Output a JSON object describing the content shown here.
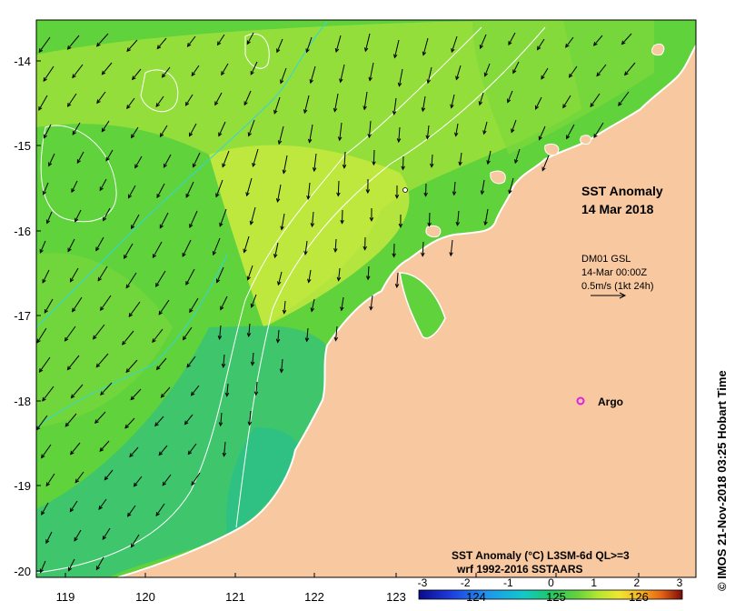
{
  "title": {
    "line1": "SST Anomaly",
    "line2": "14 Mar 2018"
  },
  "current_legend": {
    "line1": "DM01 GSL",
    "line2": "14-Mar 00:00Z",
    "line3": "0.5m/s (1kt 24h)"
  },
  "argo_label": "Argo",
  "colorbar": {
    "title_line1": "SST Anomaly (°C) L3SM-6d QL>=3",
    "title_line2": "wrf 1992-2016 SSTAARS",
    "ticks": [
      "-3",
      "-2",
      "-1",
      "0",
      "1",
      "2",
      "3"
    ],
    "colors": [
      "#0a0a8c",
      "#1e3cdc",
      "#1e96f0",
      "#14c8c8",
      "#1ec864",
      "#64d23c",
      "#b4e632",
      "#f0e632",
      "#f5b41e",
      "#e66414",
      "#b41e0a",
      "#7a0a0a"
    ]
  },
  "latitude_ticks": [
    "-14",
    "-15",
    "-16",
    "-17",
    "-18",
    "-19",
    "-20"
  ],
  "longitude_ticks": [
    "119",
    "120",
    "121",
    "122",
    "123",
    "124",
    "125",
    "126"
  ],
  "credit": "© IMOS 21-Nov-2018 03:25 Hobart Time",
  "colors": {
    "land": "#f8c9a0",
    "sea_base": "#5fd23c",
    "argo_marker": "#e020e0"
  }
}
